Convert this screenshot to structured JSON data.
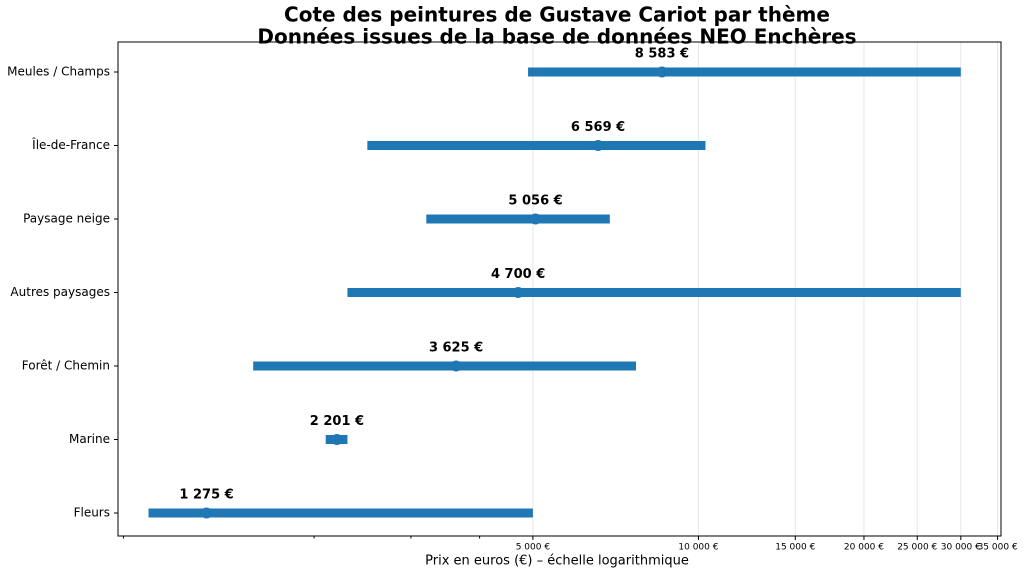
{
  "chart_data": {
    "type": "range",
    "title": "Cote des peintures de Gustave Cariot par thème",
    "subtitle": "Données issues de la base de données NEO Enchères",
    "xlabel": "Prix en euros (€) – échelle logarithmique",
    "categories": [
      "Meules / Champs",
      "Île-de-France",
      "Paysage neige",
      "Autres paysages",
      "Forêt / Chemin",
      "Marine",
      "Fleurs"
    ],
    "low": [
      4900,
      2500,
      3200,
      2300,
      1550,
      2100,
      1000
    ],
    "high": [
      30000,
      10300,
      6900,
      30000,
      7700,
      2300,
      5000
    ],
    "values": [
      8583,
      6569,
      5056,
      4700,
      3625,
      2201,
      1275
    ],
    "value_labels": [
      "8 583 €",
      "6 569 €",
      "5 056 €",
      "4 700 €",
      "3 625 €",
      "2 201 €",
      "1 275 €"
    ],
    "color": "#1f77b4",
    "xscale": "log",
    "xlim": [
      880,
      35500
    ],
    "xticks": [
      {
        "value": 5000,
        "label": "5 000 €"
      },
      {
        "value": 10000,
        "label": "10 000 €"
      },
      {
        "value": 15000,
        "label": "15 000 €"
      },
      {
        "value": 20000,
        "label": "20 000 €"
      },
      {
        "value": 25000,
        "label": "25 000 €"
      },
      {
        "value": 30000,
        "label": "30 000 €"
      },
      {
        "value": 35000,
        "label": "35 000 €"
      }
    ],
    "xminorticks": [
      900,
      2000,
      3000,
      4000
    ],
    "grid": true
  }
}
